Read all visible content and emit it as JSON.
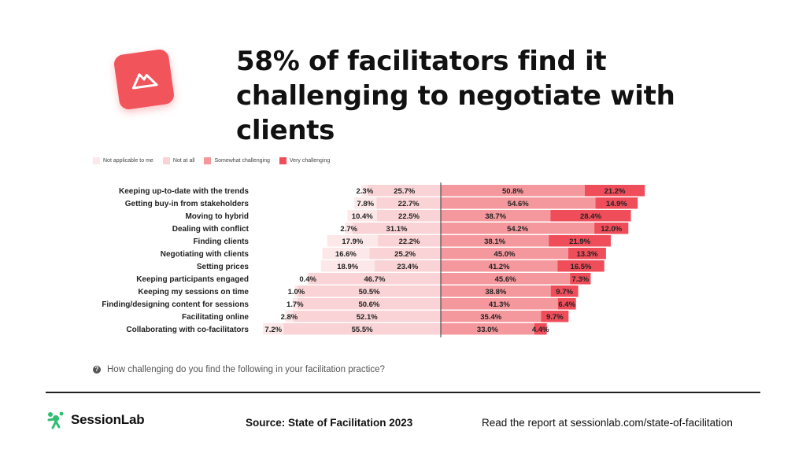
{
  "title": "58% of facilitators find it challenging to negotiate with clients",
  "question": "How challenging do you find the following in your facilitation practice?",
  "brand": "SessionLab",
  "source": "Source: State of Facilitation 2023",
  "report": "Read the report at sessionlab.com/state-of-facilitation",
  "icons": {
    "logo": "mountain-icon",
    "question": "question-icon",
    "brand": "sessionlab-logo-icon"
  },
  "colors": {
    "accent": "#f2545b",
    "brand_green": "#2fbf71"
  },
  "chart_data": {
    "type": "bar",
    "stacked": "diverging",
    "categories": [
      "Keeping up-to-date with the trends",
      "Getting buy-in from stakeholders",
      "Moving to hybrid",
      "Dealing with conflict",
      "Finding clients",
      "Negotiating with clients",
      "Setting prices",
      "Keeping participants engaged",
      "Keeping my sessions on time",
      "Finding/designing content for sessions",
      "Facilitating online",
      "Collaborating with co-facilitators"
    ],
    "series": [
      {
        "name": "Not applicable to me",
        "color": "#fce8e9",
        "side": "left",
        "values": [
          2.3,
          7.8,
          10.4,
          2.7,
          17.9,
          16.6,
          18.9,
          0.4,
          1.0,
          1.7,
          2.8,
          7.2
        ]
      },
      {
        "name": "Not at all",
        "color": "#f9d3d5",
        "side": "left",
        "values": [
          25.7,
          22.7,
          22.5,
          31.1,
          22.2,
          25.2,
          23.4,
          46.7,
          50.5,
          50.6,
          52.1,
          55.5
        ]
      },
      {
        "name": "Somewhat challenging",
        "color": "#f5989d",
        "side": "right",
        "values": [
          50.8,
          54.6,
          38.7,
          54.2,
          38.1,
          45.0,
          41.2,
          45.6,
          38.8,
          41.3,
          35.4,
          33.0
        ]
      },
      {
        "name": "Very challenging",
        "color": "#ef4d5a",
        "side": "right",
        "values": [
          21.2,
          14.9,
          28.4,
          12.0,
          21.9,
          13.3,
          16.5,
          7.3,
          9.7,
          6.4,
          9.7,
          4.4
        ]
      }
    ],
    "grid": false,
    "legend": "top-left"
  }
}
